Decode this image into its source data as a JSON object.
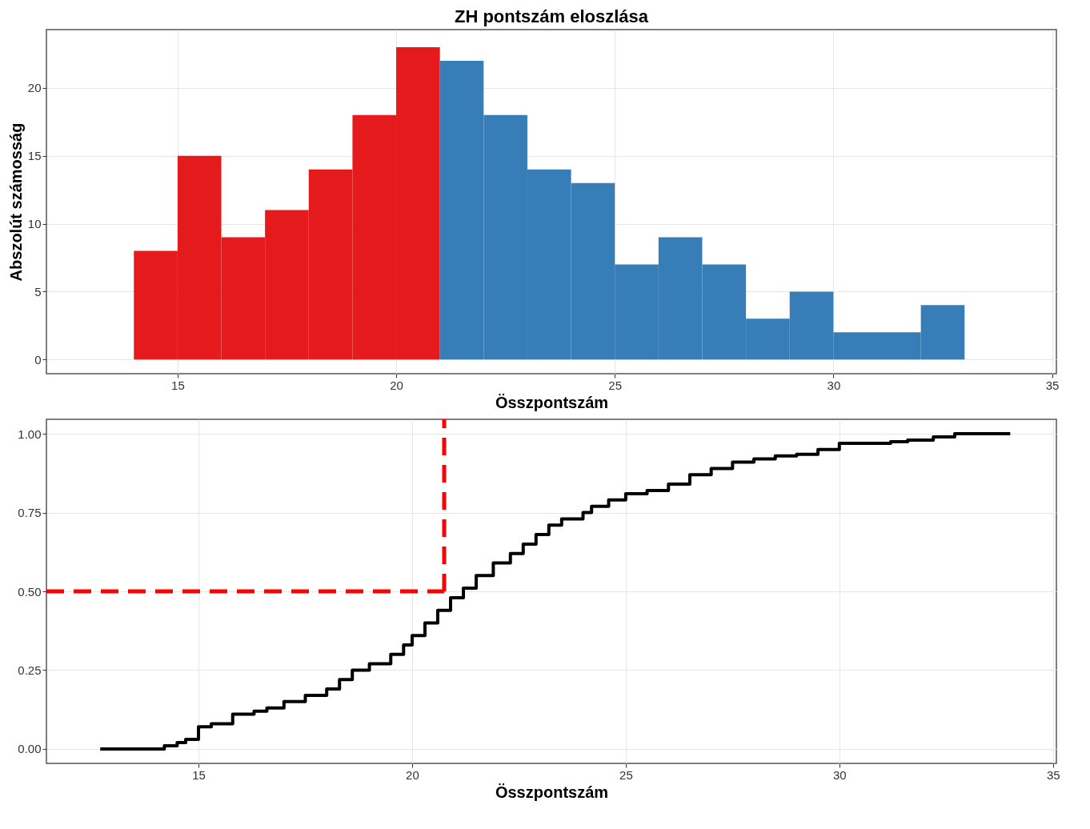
{
  "chart_data": [
    {
      "type": "histogram",
      "title": "ZH pontszám eloszlása",
      "xlabel": "Összpontszám",
      "ylabel": "Abszolút számosság",
      "bins": [
        14,
        15,
        16,
        17,
        18,
        19,
        20,
        21,
        22,
        23,
        24,
        25,
        26,
        27,
        28,
        29,
        30,
        31,
        32,
        33
      ],
      "values": [
        8,
        15,
        9,
        11,
        14,
        18,
        23,
        22,
        18,
        14,
        13,
        7,
        9,
        7,
        3,
        5,
        2,
        2,
        4
      ],
      "colors": [
        "#e41a1c",
        "#e41a1c",
        "#e41a1c",
        "#e41a1c",
        "#e41a1c",
        "#e41a1c",
        "#e41a1c",
        "#377eb8",
        "#377eb8",
        "#377eb8",
        "#377eb8",
        "#377eb8",
        "#377eb8",
        "#377eb8",
        "#377eb8",
        "#377eb8",
        "#377eb8",
        "#377eb8",
        "#377eb8"
      ],
      "xlim": [
        12,
        35.1
      ],
      "xticks": [
        15,
        20,
        25,
        30,
        35
      ],
      "ylim": [
        -1.05,
        24.3
      ],
      "yticks": [
        0,
        5,
        10,
        15,
        20
      ],
      "grid": true
    },
    {
      "type": "step",
      "xlabel": "Összpontszám",
      "x": [
        12.7,
        14,
        14.2,
        14.5,
        14.7,
        15,
        15.3,
        15.8,
        16.3,
        16.6,
        17,
        17.5,
        18,
        18.3,
        18.6,
        19,
        19.5,
        19.8,
        20,
        20.3,
        20.6,
        20.9,
        21.2,
        21.5,
        21.9,
        22.3,
        22.6,
        22.9,
        23.2,
        23.5,
        24,
        24.2,
        24.6,
        25,
        25.5,
        26,
        26.5,
        27,
        27.5,
        28,
        28.5,
        29,
        29.5,
        30,
        31,
        31.2,
        31.6,
        32.2,
        32.7,
        34
      ],
      "values": [
        0,
        0,
        0.01,
        0.02,
        0.03,
        0.07,
        0.08,
        0.11,
        0.12,
        0.13,
        0.15,
        0.17,
        0.19,
        0.22,
        0.25,
        0.27,
        0.3,
        0.33,
        0.36,
        0.4,
        0.44,
        0.48,
        0.51,
        0.55,
        0.59,
        0.62,
        0.65,
        0.68,
        0.71,
        0.73,
        0.75,
        0.77,
        0.79,
        0.81,
        0.82,
        0.84,
        0.87,
        0.89,
        0.91,
        0.92,
        0.93,
        0.935,
        0.95,
        0.97,
        0.97,
        0.975,
        0.98,
        0.99,
        1,
        1
      ],
      "color": "#000000",
      "xlim": [
        11.44,
        35.08
      ],
      "xticks": [
        15,
        20,
        25,
        30,
        35
      ],
      "ylim": [
        -0.046,
        1.046
      ],
      "yticks": [
        {
          "value": 0,
          "label": "0.00"
        },
        {
          "value": 0.25,
          "label": "0.25"
        },
        {
          "value": 0.5,
          "label": "0.50"
        },
        {
          "value": 0.75,
          "label": "0.75"
        },
        {
          "value": 1,
          "label": "1.00"
        }
      ],
      "ref_lines": [
        {
          "axis": "y",
          "value": 0.5,
          "color": "#ff0000",
          "line_style": "dashed"
        },
        {
          "axis": "x",
          "value": 20.75,
          "color": "#ff0000",
          "line_style": "dashed"
        }
      ],
      "grid": true
    }
  ]
}
